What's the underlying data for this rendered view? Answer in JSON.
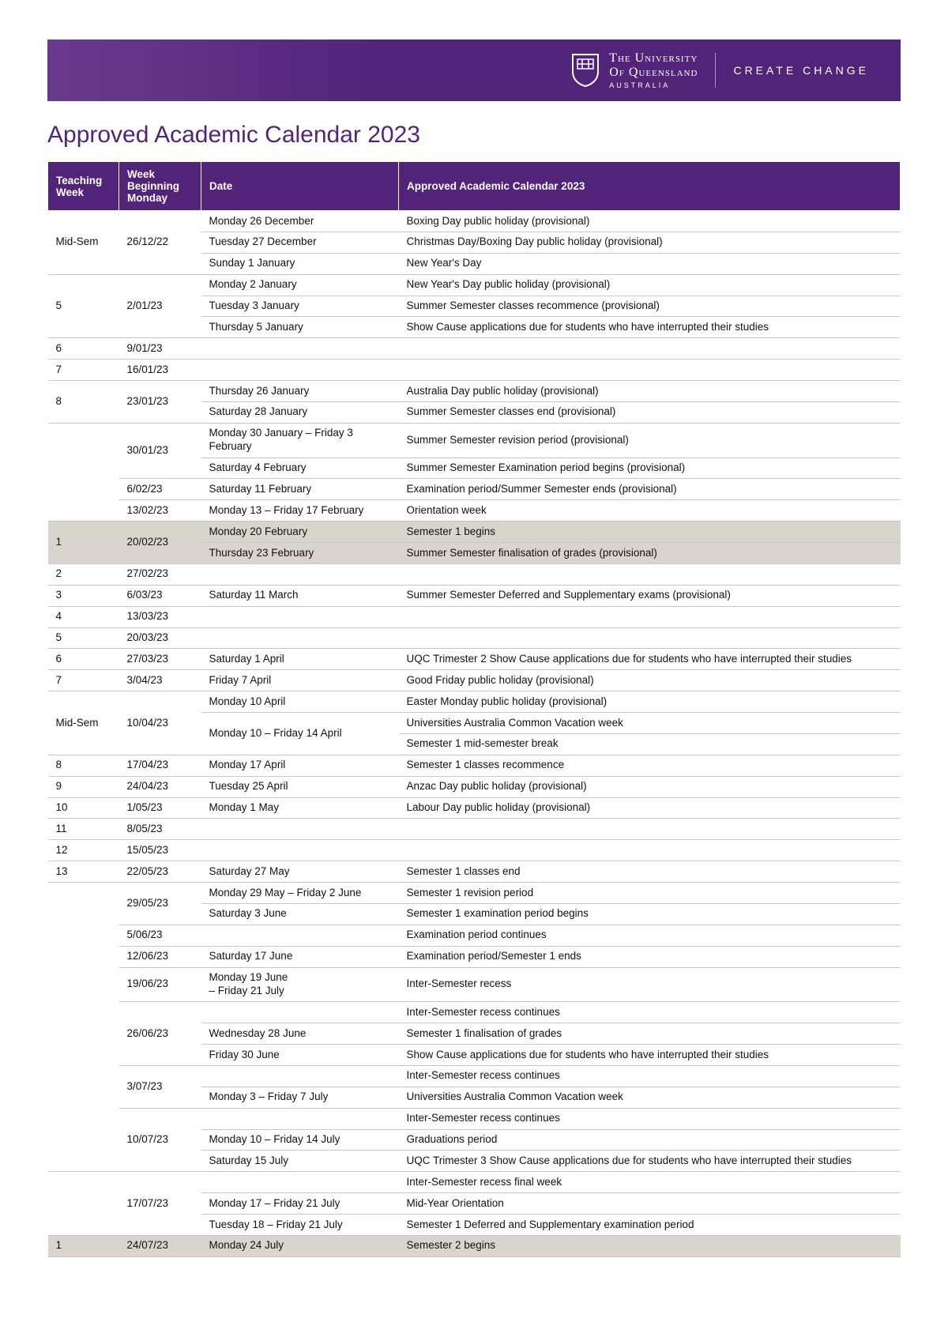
{
  "header": {
    "uni_line1": "The University",
    "uni_line2": "Of Queensland",
    "australia": "AUSTRALIA",
    "tagline": "CREATE CHANGE"
  },
  "title": "Approved Academic Calendar 2023",
  "columns": {
    "teaching_week": "Teaching Week",
    "week_beginning": "Week Beginning Monday",
    "date": "Date",
    "event": "Approved Academic Calendar 2023"
  },
  "rows": [
    {
      "hl": false,
      "tw": "Mid-Sem",
      "tw_rows": 3,
      "wbm": "26/12/22",
      "wbm_rows": 3,
      "date": "Monday 26 December",
      "event": "Boxing Day public holiday (provisional)"
    },
    {
      "hl": false,
      "date": "Tuesday 27 December",
      "event": "Christmas Day/Boxing Day public holiday (provisional)"
    },
    {
      "hl": false,
      "date": "Sunday 1 January",
      "event": "New Year's Day"
    },
    {
      "hl": false,
      "tw": "5",
      "tw_rows": 3,
      "wbm": "2/01/23",
      "wbm_rows": 3,
      "date": "Monday 2 January",
      "event": "New Year's Day public holiday (provisional)"
    },
    {
      "hl": false,
      "date": "Tuesday 3 January",
      "event": "Summer Semester classes recommence (provisional)"
    },
    {
      "hl": false,
      "date": "Thursday 5 January",
      "event": "Show Cause applications due for students who have interrupted their studies"
    },
    {
      "hl": false,
      "tw": "6",
      "tw_rows": 1,
      "wbm": "9/01/23",
      "wbm_rows": 1,
      "date": "",
      "date_span": 2,
      "event": null
    },
    {
      "hl": false,
      "tw": "7",
      "tw_rows": 1,
      "wbm": "16/01/23",
      "wbm_rows": 1,
      "date": "",
      "date_span": 2,
      "event": null
    },
    {
      "hl": false,
      "tw": "8",
      "tw_rows": 2,
      "wbm": "23/01/23",
      "wbm_rows": 2,
      "date": "Thursday 26 January",
      "event": "Australia Day public holiday (provisional)"
    },
    {
      "hl": false,
      "date": "Saturday 28 January",
      "event": "Summer Semester classes end (provisional)"
    },
    {
      "hl": false,
      "tw": "",
      "tw_rows": 4,
      "wbm": "30/01/23",
      "wbm_rows": 2,
      "date": "Monday 30 January – Friday 3 February",
      "event": "Summer Semester revision period (provisional)"
    },
    {
      "hl": false,
      "date": "Saturday 4 February",
      "event": "Summer Semester Examination period begins (provisional)"
    },
    {
      "hl": false,
      "wbm": "6/02/23",
      "wbm_rows": 1,
      "date": "Saturday 11 February",
      "event": "Examination period/Summer Semester ends (provisional)"
    },
    {
      "hl": false,
      "wbm": "13/02/23",
      "wbm_rows": 1,
      "date": "Monday 13 – Friday 17 February",
      "event": "Orientation week"
    },
    {
      "hl": true,
      "tw": "1",
      "tw_rows": 2,
      "wbm": "20/02/23",
      "wbm_rows": 2,
      "date": "Monday 20 February",
      "event": "Semester 1 begins"
    },
    {
      "hl": true,
      "date": "Thursday 23 February",
      "event": "Summer Semester finalisation of grades (provisional)"
    },
    {
      "hl": false,
      "tw": "2",
      "tw_rows": 1,
      "wbm": "27/02/23",
      "wbm_rows": 1,
      "date": "",
      "date_span": 2,
      "event": null
    },
    {
      "hl": false,
      "tw": "3",
      "tw_rows": 1,
      "wbm": "6/03/23",
      "wbm_rows": 1,
      "date": "Saturday 11 March",
      "event": "Summer Semester Deferred and Supplementary exams (provisional)"
    },
    {
      "hl": false,
      "tw": "4",
      "tw_rows": 1,
      "wbm": "13/03/23",
      "wbm_rows": 1,
      "date": "",
      "date_span": 2,
      "event": null
    },
    {
      "hl": false,
      "tw": "5",
      "tw_rows": 1,
      "wbm": "20/03/23",
      "wbm_rows": 1,
      "date": "",
      "date_span": 2,
      "event": null
    },
    {
      "hl": false,
      "tw": "6",
      "tw_rows": 1,
      "wbm": "27/03/23",
      "wbm_rows": 1,
      "date": "Saturday 1 April",
      "event": "UQC Trimester 2 Show Cause applications due for students who have interrupted their studies"
    },
    {
      "hl": false,
      "tw": "7",
      "tw_rows": 1,
      "wbm": "3/04/23",
      "wbm_rows": 1,
      "date": "Friday 7 April",
      "event": "Good Friday public holiday (provisional)"
    },
    {
      "hl": false,
      "tw": "Mid-Sem",
      "tw_rows": 3,
      "wbm": "10/04/23",
      "wbm_rows": 3,
      "date": "Monday 10 April",
      "event": "Easter Monday public holiday (provisional)"
    },
    {
      "hl": false,
      "date": "Monday 10 – Friday 14 April",
      "date_rows": 2,
      "event": "Universities Australia Common Vacation week"
    },
    {
      "hl": false,
      "event": "Semester 1 mid-semester break"
    },
    {
      "hl": false,
      "tw": "8",
      "tw_rows": 1,
      "wbm": "17/04/23",
      "wbm_rows": 1,
      "date": "Monday 17 April",
      "event": "Semester 1 classes recommence"
    },
    {
      "hl": false,
      "tw": "9",
      "tw_rows": 1,
      "wbm": "24/04/23",
      "wbm_rows": 1,
      "date": "Tuesday 25 April",
      "event": "Anzac Day public holiday (provisional)"
    },
    {
      "hl": false,
      "tw": "10",
      "tw_rows": 1,
      "wbm": "1/05/23",
      "wbm_rows": 1,
      "date": "Monday 1 May",
      "event": "Labour Day public holiday (provisional)"
    },
    {
      "hl": false,
      "tw": "11",
      "tw_rows": 1,
      "wbm": "8/05/23",
      "wbm_rows": 1,
      "date": "",
      "date_span": 2,
      "event": null
    },
    {
      "hl": false,
      "tw": "12",
      "tw_rows": 1,
      "wbm": "15/05/23",
      "wbm_rows": 1,
      "date": "",
      "date_span": 2,
      "event": null
    },
    {
      "hl": false,
      "tw": "13",
      "tw_rows": 1,
      "wbm": "22/05/23",
      "wbm_rows": 1,
      "date": "Saturday 27 May",
      "event": "Semester 1 classes end"
    },
    {
      "hl": false,
      "tw": "",
      "tw_rows": 13,
      "wbm": "29/05/23",
      "wbm_rows": 2,
      "date": "Monday 29 May – Friday 2 June",
      "event": "Semester 1 revision period"
    },
    {
      "hl": false,
      "date": "Saturday 3 June",
      "event": "Semester 1 examination period begins"
    },
    {
      "hl": false,
      "wbm": "5/06/23",
      "wbm_rows": 1,
      "date": "",
      "event": "Examination period continues"
    },
    {
      "hl": false,
      "wbm": "12/06/23",
      "wbm_rows": 1,
      "date": "Saturday 17 June",
      "event": "Examination period/Semester 1 ends"
    },
    {
      "hl": false,
      "wbm": "19/06/23",
      "wbm_rows": 1,
      "date": "Monday 19 June\n– Friday 21 July",
      "event": "Inter-Semester recess"
    },
    {
      "hl": false,
      "wbm": "26/06/23",
      "wbm_rows": 3,
      "date": "",
      "event": "Inter-Semester recess continues"
    },
    {
      "hl": false,
      "date": "Wednesday 28 June",
      "event": "Semester 1 finalisation of grades"
    },
    {
      "hl": false,
      "date": "Friday 30 June",
      "event": "Show Cause applications due for students who have interrupted their studies"
    },
    {
      "hl": false,
      "wbm": "3/07/23",
      "wbm_rows": 2,
      "date": "",
      "event": "Inter-Semester recess continues"
    },
    {
      "hl": false,
      "date": "Monday 3 – Friday 7 July",
      "event": "Universities Australia Common Vacation week"
    },
    {
      "hl": false,
      "wbm": "10/07/23",
      "wbm_rows": 3,
      "date": "",
      "event": "Inter-Semester recess continues"
    },
    {
      "hl": false,
      "date": "Monday 10 – Friday 14 July",
      "event": "Graduations period"
    },
    {
      "hl": false,
      "date": "Saturday 15 July",
      "event": "UQC Trimester 3 Show Cause applications due for students who have interrupted their studies"
    },
    {
      "hl": false,
      "tw": "",
      "tw_rows": 3,
      "wbm": "17/07/23",
      "wbm_rows": 3,
      "date": "",
      "event": "Inter-Semester recess final week"
    },
    {
      "hl": false,
      "date": "Monday 17 – Friday 21 July",
      "event": "Mid-Year Orientation"
    },
    {
      "hl": false,
      "date": "Tuesday 18 – Friday 21 July",
      "event": "Semester 1 Deferred and Supplementary examination period"
    },
    {
      "hl": true,
      "tw": "1",
      "tw_rows": 1,
      "wbm": "24/07/23",
      "wbm_rows": 1,
      "date": "Monday 24 July",
      "event": "Semester 2 begins"
    }
  ]
}
